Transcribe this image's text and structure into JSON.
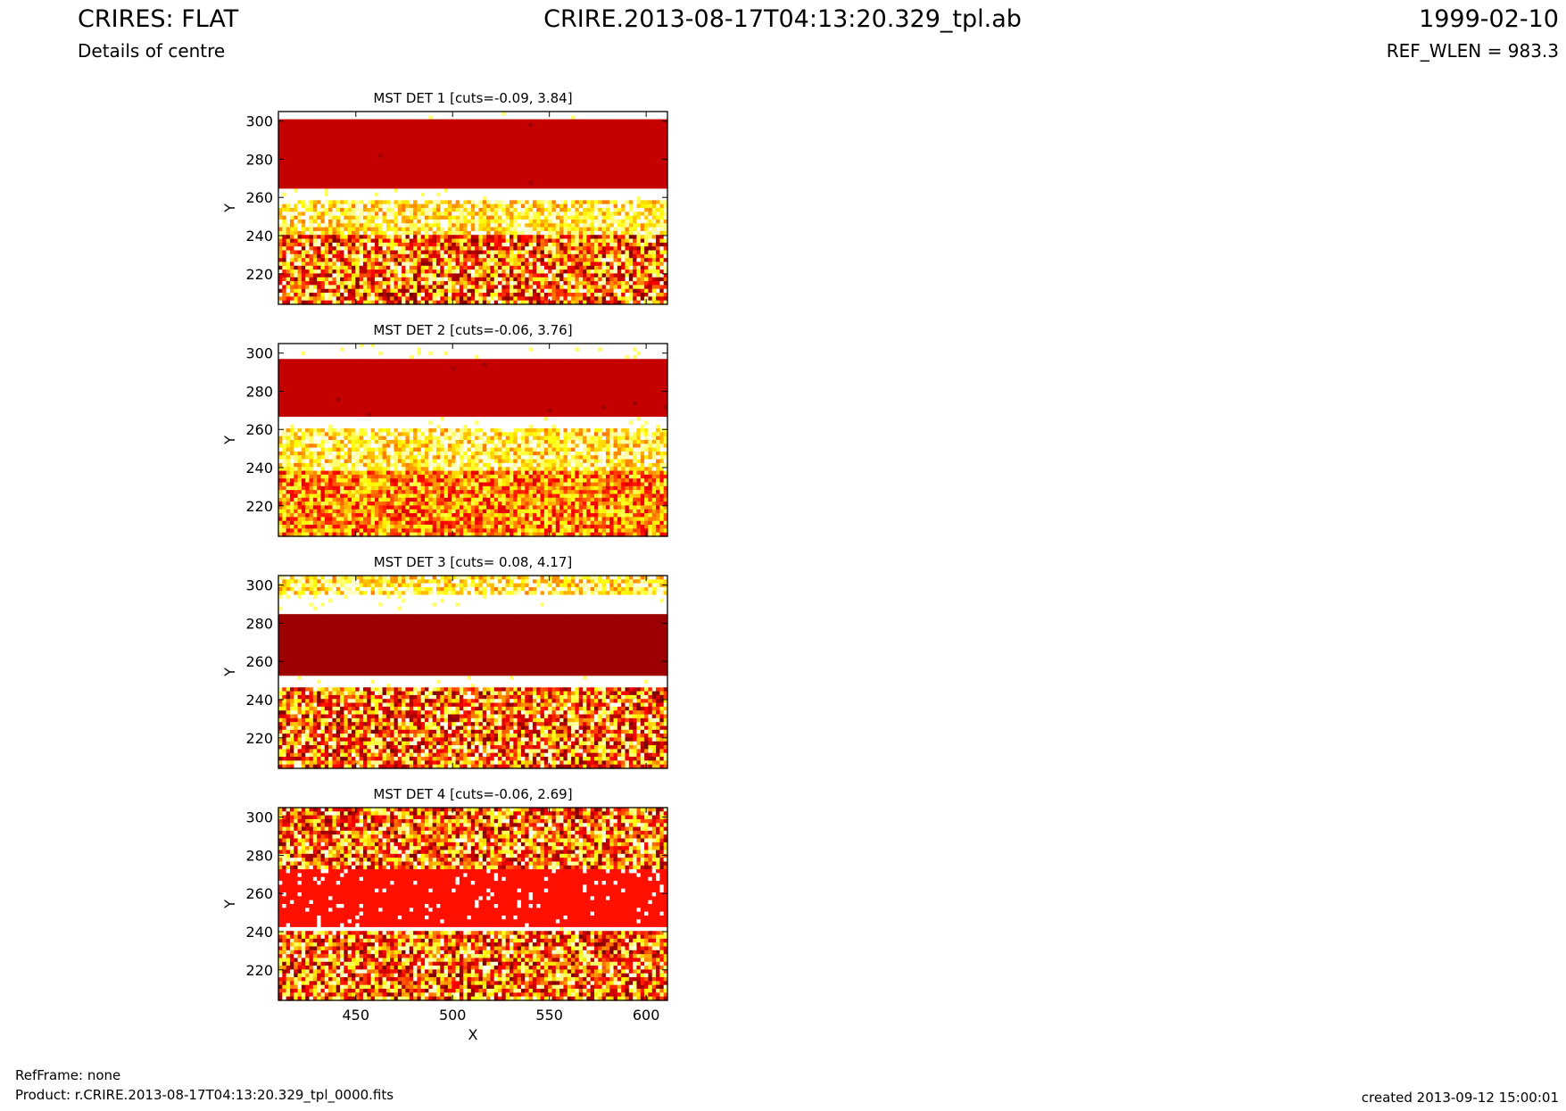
{
  "header": {
    "title_left": "CRIRES: FLAT",
    "subtitle_left": "Details of centre",
    "title_center": "CRIRE.2013-08-17T04:13:20.329_tpl.ab",
    "title_right": "1999-02-10",
    "subtitle_right": "REF_WLEN = 983.3"
  },
  "footer": {
    "refframe": "RefFrame: none",
    "product": "Product: r.CRIRE.2013-08-17T04:13:20.329_tpl_0000.fits",
    "created": "created 2013-09-12 15:00:01"
  },
  "colors": {
    "heat_dark": "#9c0000",
    "heat_red": "#c40000",
    "heat_bright_red": "#ff1000",
    "heat_orange": "#ff6a00",
    "heat_yellow": "#ffe000",
    "background": "#ffffff"
  },
  "chart_data": [
    {
      "type": "heatmap",
      "title": "MST DET 1 [cuts=-0.09, 3.84]",
      "xlabel": "",
      "ylabel": "Y",
      "xlim": [
        410,
        611
      ],
      "ylim": [
        204,
        305
      ],
      "xticks": [],
      "yticks": [
        220,
        240,
        260,
        280,
        300
      ],
      "colormap": "hot",
      "bands": [
        {
          "y_from": 305,
          "y_to": 301,
          "level": "white"
        },
        {
          "y_from": 301,
          "y_to": 265,
          "level": "red"
        },
        {
          "y_from": 265,
          "y_to": 258,
          "level": "white"
        },
        {
          "y_from": 258,
          "y_to": 240,
          "level": "noise-light"
        },
        {
          "y_from": 240,
          "y_to": 204,
          "level": "noise-dark"
        }
      ]
    },
    {
      "type": "heatmap",
      "title": "MST DET 2 [cuts=-0.06, 3.76]",
      "xlabel": "",
      "ylabel": "Y",
      "xlim": [
        410,
        611
      ],
      "ylim": [
        204,
        305
      ],
      "xticks": [],
      "yticks": [
        220,
        240,
        260,
        280,
        300
      ],
      "colormap": "hot",
      "bands": [
        {
          "y_from": 305,
          "y_to": 296,
          "level": "white"
        },
        {
          "y_from": 296,
          "y_to": 266,
          "level": "red"
        },
        {
          "y_from": 266,
          "y_to": 260,
          "level": "white"
        },
        {
          "y_from": 260,
          "y_to": 238,
          "level": "noise-light"
        },
        {
          "y_from": 238,
          "y_to": 204,
          "level": "noise-medium"
        }
      ]
    },
    {
      "type": "heatmap",
      "title": "MST DET 3 [cuts= 0.08, 4.17]",
      "xlabel": "",
      "ylabel": "Y",
      "xlim": [
        410,
        611
      ],
      "ylim": [
        204,
        305
      ],
      "xticks": [],
      "yticks": [
        220,
        240,
        260,
        280,
        300
      ],
      "colormap": "hot",
      "bands": [
        {
          "y_from": 305,
          "y_to": 295,
          "level": "noise-light"
        },
        {
          "y_from": 295,
          "y_to": 285,
          "level": "white"
        },
        {
          "y_from": 285,
          "y_to": 252,
          "level": "dark"
        },
        {
          "y_from": 252,
          "y_to": 247,
          "level": "white"
        },
        {
          "y_from": 247,
          "y_to": 204,
          "level": "noise-dark"
        }
      ]
    },
    {
      "type": "heatmap",
      "title": "MST DET 4 [cuts=-0.06, 2.69]",
      "xlabel": "X",
      "ylabel": "Y",
      "xlim": [
        410,
        611
      ],
      "ylim": [
        204,
        305
      ],
      "xticks": [
        450,
        500,
        550,
        600
      ],
      "yticks": [
        220,
        240,
        260,
        280,
        300
      ],
      "colormap": "hot",
      "bands": [
        {
          "y_from": 305,
          "y_to": 273,
          "level": "noise-dark"
        },
        {
          "y_from": 273,
          "y_to": 243,
          "level": "bright-red"
        },
        {
          "y_from": 243,
          "y_to": 240,
          "level": "white"
        },
        {
          "y_from": 240,
          "y_to": 204,
          "level": "noise-dark"
        }
      ]
    }
  ]
}
